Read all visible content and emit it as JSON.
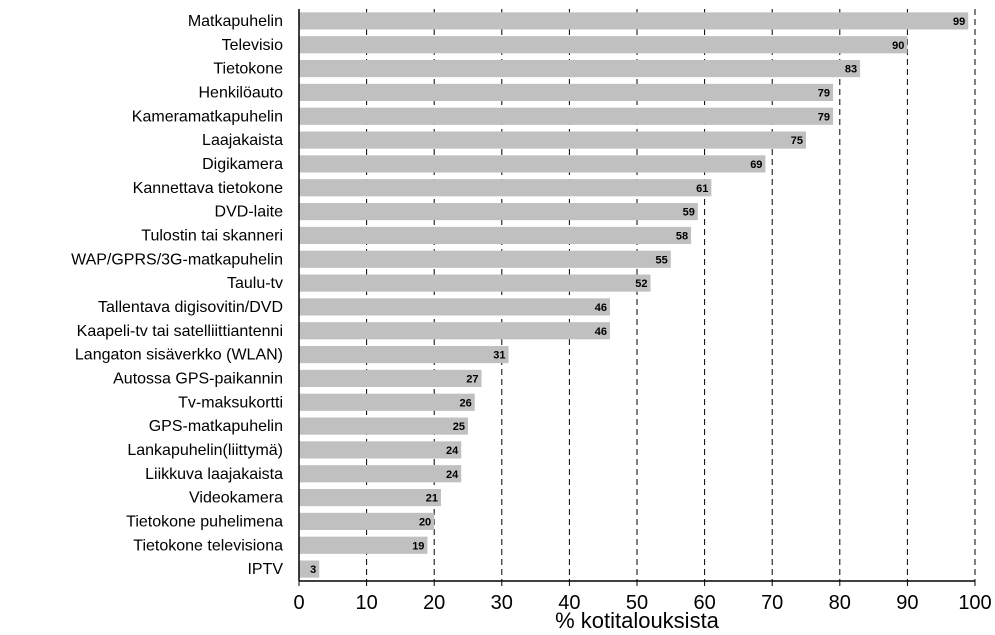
{
  "chart_data": {
    "type": "bar",
    "orientation": "horizontal",
    "categories": [
      "Matkapuhelin",
      "Televisio",
      "Tietokone",
      "Henkilöauto",
      "Kameramatkapuhelin",
      "Laajakaista",
      "Digikamera",
      "Kannettava tietokone",
      "DVD-laite",
      "Tulostin tai skanneri",
      "WAP/GPRS/3G-matkapuhelin",
      "Taulu-tv",
      "Tallentava digisovitin/DVD",
      "Kaapeli-tv tai satelliittiantenni",
      "Langaton sisäverkko (WLAN)",
      "Autossa GPS-paikannin",
      "Tv-maksukortti",
      "GPS-matkapuhelin",
      "Lankapuhelin(liittymä)",
      "Liikkuva laajakaista",
      "Videokamera",
      "Tietokone puhelimena",
      "Tietokone televisiona",
      "IPTV"
    ],
    "values": [
      99,
      90,
      83,
      79,
      79,
      75,
      69,
      61,
      59,
      58,
      55,
      52,
      46,
      46,
      31,
      27,
      26,
      25,
      24,
      24,
      21,
      20,
      19,
      3
    ],
    "value_labels": [
      "99",
      "90",
      "83",
      "79",
      "79",
      "75",
      "69",
      "61",
      "59",
      "58",
      "55",
      "52",
      "46",
      "46",
      "31",
      "27",
      "26",
      "25",
      "24",
      "24",
      "21",
      "20",
      "19",
      "3"
    ],
    "xlim": [
      0,
      100
    ],
    "xticks": [
      "0",
      "10",
      "20",
      "30",
      "40",
      "50",
      "60",
      "70",
      "80",
      "90",
      "100"
    ],
    "xlabel": "% kotitalouksista",
    "grid": "vertical-dashed",
    "bar_color": "#c0c0c0"
  }
}
